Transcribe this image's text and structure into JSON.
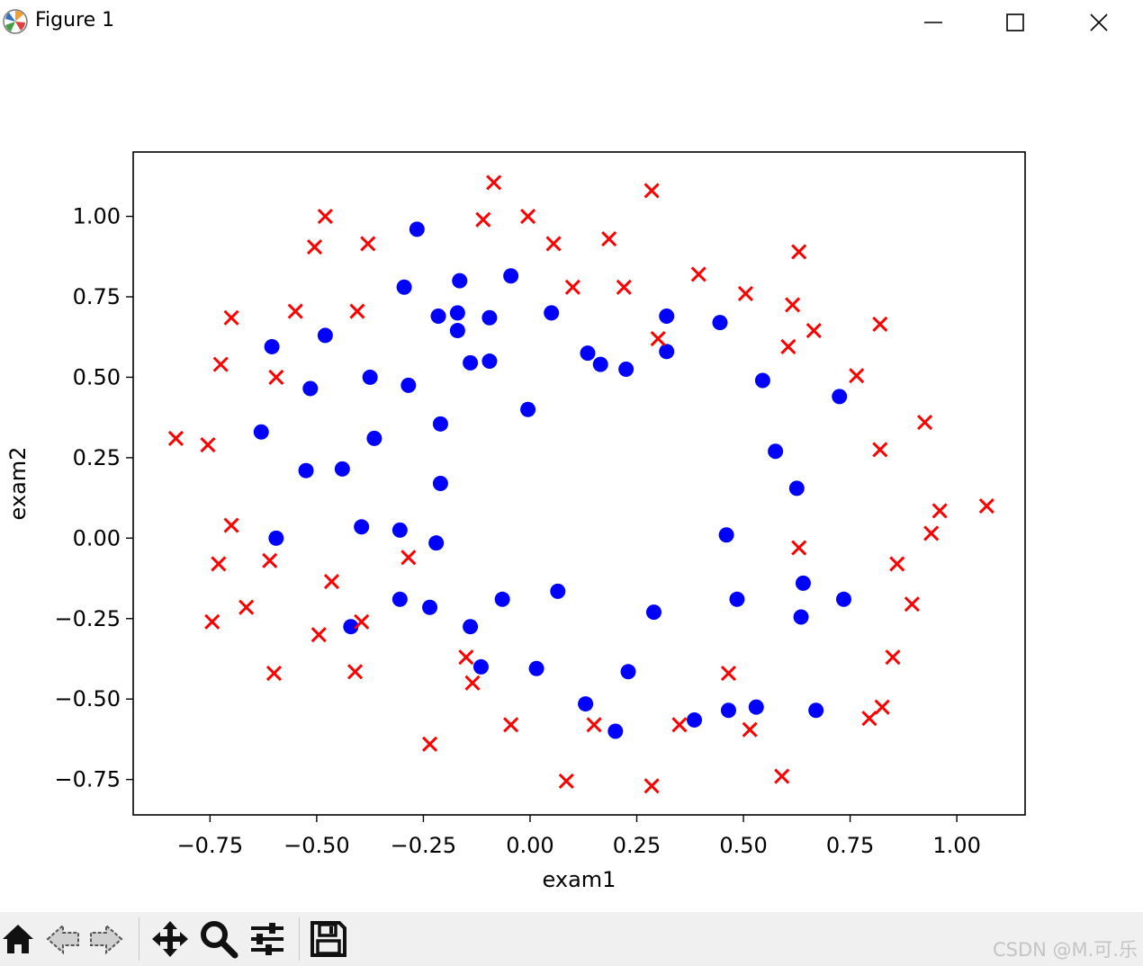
{
  "window": {
    "title": "Figure 1",
    "controls": [
      "minimize",
      "maximize",
      "close"
    ]
  },
  "toolbar": {
    "buttons": [
      "home-icon",
      "back-icon",
      "forward-icon",
      "pan-icon",
      "zoom-icon",
      "configure-subplots-icon",
      "save-icon"
    ]
  },
  "watermark": "CSDN @M.可.乐",
  "colors": {
    "accepted": "#0000ff",
    "rejected": "#ff0000"
  },
  "chart_data": {
    "type": "scatter",
    "xlabel": "exam1",
    "ylabel": "exam2",
    "xlim": [
      -0.93,
      1.16
    ],
    "ylim": [
      -0.86,
      1.2
    ],
    "xticks": [
      -0.75,
      -0.5,
      -0.25,
      0.0,
      0.25,
      0.5,
      0.75,
      1.0
    ],
    "yticks": [
      -0.75,
      -0.5,
      -0.25,
      0.0,
      0.25,
      0.5,
      0.75,
      1.0
    ],
    "xtick_labels": [
      "−0.75",
      "−0.50",
      "−0.25",
      "0.00",
      "0.25",
      "0.50",
      "0.75",
      "1.00"
    ],
    "ytick_labels": [
      "−0.75",
      "−0.50",
      "−0.25",
      "0.00",
      "0.25",
      "0.50",
      "0.75",
      "1.00"
    ],
    "grid": false,
    "series": [
      {
        "marker": "o",
        "color": "#0000ff",
        "points": [
          [
            -0.265,
            0.96
          ],
          [
            -0.295,
            0.78
          ],
          [
            -0.165,
            0.8
          ],
          [
            -0.045,
            0.815
          ],
          [
            -0.215,
            0.69
          ],
          [
            -0.17,
            0.7
          ],
          [
            -0.17,
            0.645
          ],
          [
            -0.095,
            0.685
          ],
          [
            -0.605,
            0.595
          ],
          [
            -0.48,
            0.63
          ],
          [
            -0.515,
            0.465
          ],
          [
            -0.375,
            0.5
          ],
          [
            -0.285,
            0.475
          ],
          [
            -0.14,
            0.545
          ],
          [
            -0.095,
            0.55
          ],
          [
            -0.005,
            0.4
          ],
          [
            -0.21,
            0.355
          ],
          [
            -0.63,
            0.33
          ],
          [
            -0.365,
            0.31
          ],
          [
            -0.525,
            0.21
          ],
          [
            -0.44,
            0.215
          ],
          [
            -0.21,
            0.17
          ],
          [
            -0.595,
            0.0
          ],
          [
            -0.395,
            0.035
          ],
          [
            -0.305,
            0.025
          ],
          [
            -0.22,
            -0.015
          ],
          [
            -0.305,
            -0.19
          ],
          [
            -0.235,
            -0.215
          ],
          [
            -0.14,
            -0.275
          ],
          [
            -0.42,
            -0.275
          ],
          [
            -0.115,
            -0.4
          ],
          [
            -0.065,
            -0.19
          ],
          [
            0.015,
            -0.405
          ],
          [
            0.065,
            -0.165
          ],
          [
            0.05,
            0.7
          ],
          [
            0.135,
            0.575
          ],
          [
            0.165,
            0.54
          ],
          [
            0.225,
            0.525
          ],
          [
            0.32,
            0.69
          ],
          [
            0.32,
            0.58
          ],
          [
            0.445,
            0.67
          ],
          [
            0.545,
            0.49
          ],
          [
            0.725,
            0.44
          ],
          [
            0.575,
            0.27
          ],
          [
            0.625,
            0.155
          ],
          [
            0.46,
            0.01
          ],
          [
            0.64,
            -0.14
          ],
          [
            0.485,
            -0.19
          ],
          [
            0.735,
            -0.19
          ],
          [
            0.635,
            -0.245
          ],
          [
            0.29,
            -0.23
          ],
          [
            0.23,
            -0.415
          ],
          [
            0.13,
            -0.515
          ],
          [
            0.2,
            -0.6
          ],
          [
            0.385,
            -0.565
          ],
          [
            0.465,
            -0.535
          ],
          [
            0.53,
            -0.525
          ],
          [
            0.67,
            -0.535
          ]
        ]
      },
      {
        "marker": "x",
        "color": "#ff0000",
        "points": [
          [
            -0.085,
            1.105
          ],
          [
            -0.005,
            1.0
          ],
          [
            -0.11,
            0.99
          ],
          [
            -0.48,
            1.0
          ],
          [
            -0.505,
            0.905
          ],
          [
            -0.38,
            0.915
          ],
          [
            0.055,
            0.915
          ],
          [
            0.185,
            0.93
          ],
          [
            0.285,
            1.08
          ],
          [
            0.63,
            0.89
          ],
          [
            0.395,
            0.82
          ],
          [
            0.1,
            0.78
          ],
          [
            0.22,
            0.78
          ],
          [
            0.505,
            0.76
          ],
          [
            -0.7,
            0.685
          ],
          [
            -0.55,
            0.705
          ],
          [
            -0.405,
            0.705
          ],
          [
            0.615,
            0.725
          ],
          [
            0.665,
            0.645
          ],
          [
            0.82,
            0.665
          ],
          [
            0.3,
            0.62
          ],
          [
            0.605,
            0.595
          ],
          [
            -0.725,
            0.54
          ],
          [
            -0.595,
            0.5
          ],
          [
            0.765,
            0.505
          ],
          [
            0.925,
            0.36
          ],
          [
            -0.83,
            0.31
          ],
          [
            -0.755,
            0.29
          ],
          [
            0.82,
            0.275
          ],
          [
            1.07,
            0.1
          ],
          [
            0.96,
            0.085
          ],
          [
            -0.7,
            0.04
          ],
          [
            0.94,
            0.015
          ],
          [
            -0.73,
            -0.08
          ],
          [
            -0.61,
            -0.07
          ],
          [
            -0.285,
            -0.06
          ],
          [
            0.63,
            -0.03
          ],
          [
            0.86,
            -0.08
          ],
          [
            -0.465,
            -0.135
          ],
          [
            -0.665,
            -0.215
          ],
          [
            0.895,
            -0.205
          ],
          [
            -0.745,
            -0.26
          ],
          [
            -0.395,
            -0.26
          ],
          [
            -0.495,
            -0.3
          ],
          [
            -0.15,
            -0.37
          ],
          [
            0.85,
            -0.37
          ],
          [
            -0.6,
            -0.42
          ],
          [
            -0.41,
            -0.415
          ],
          [
            -0.135,
            -0.45
          ],
          [
            0.465,
            -0.42
          ],
          [
            -0.045,
            -0.58
          ],
          [
            0.15,
            -0.58
          ],
          [
            0.35,
            -0.58
          ],
          [
            0.795,
            -0.56
          ],
          [
            0.825,
            -0.525
          ],
          [
            0.515,
            -0.595
          ],
          [
            -0.235,
            -0.64
          ],
          [
            0.085,
            -0.755
          ],
          [
            0.285,
            -0.77
          ],
          [
            0.59,
            -0.74
          ]
        ]
      }
    ]
  }
}
